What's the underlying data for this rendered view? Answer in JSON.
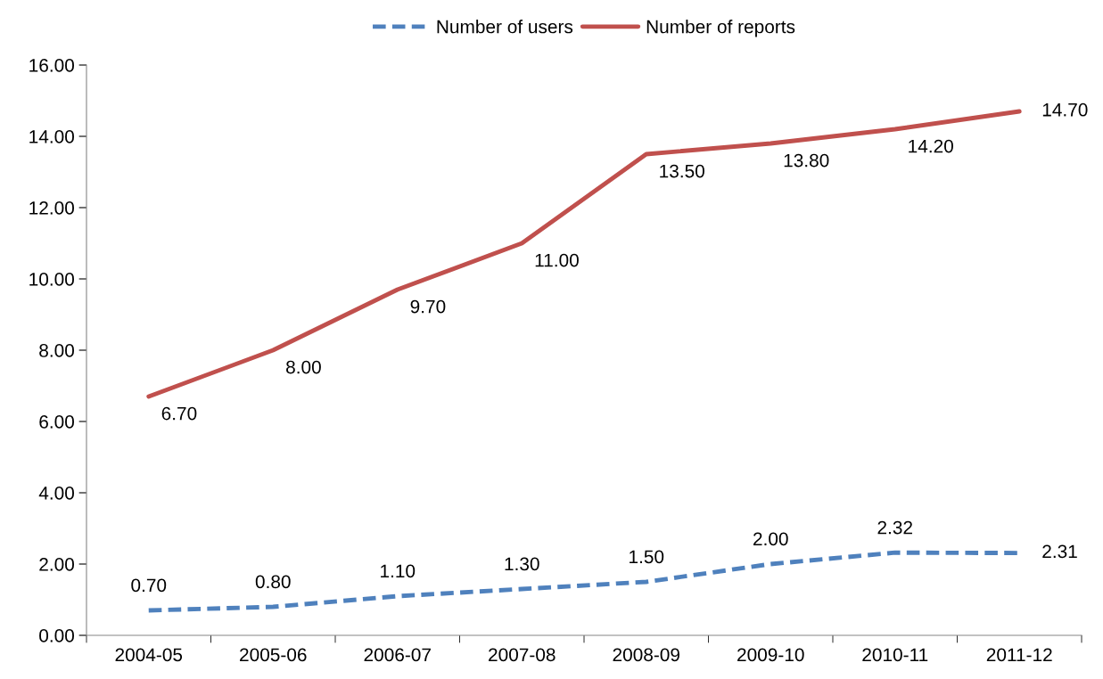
{
  "chart_data": {
    "type": "line",
    "categories": [
      "2004-05",
      "2005-06",
      "2006-07",
      "2007-08",
      "2008-09",
      "2009-10",
      "2010-11",
      "2011-12"
    ],
    "series": [
      {
        "name": "Number of users",
        "color": "#4f81bd",
        "line_style": "dashed",
        "values": [
          0.7,
          0.8,
          1.1,
          1.3,
          1.5,
          2.0,
          2.32,
          2.31
        ],
        "value_labels": [
          "0.70",
          "0.80",
          "1.10",
          "1.30",
          "1.50",
          "2.00",
          "2.32",
          "2.31"
        ]
      },
      {
        "name": "Number of reports",
        "color": "#c0504d",
        "line_style": "solid",
        "values": [
          6.7,
          8.0,
          9.7,
          11.0,
          13.5,
          13.8,
          14.2,
          14.7
        ],
        "value_labels": [
          "6.70",
          "8.00",
          "9.70",
          "11.00",
          "13.50",
          "13.80",
          "14.20",
          "14.70"
        ]
      }
    ],
    "ylim": [
      0,
      16
    ],
    "yticks": [
      {
        "value": 0,
        "label": "0.00"
      },
      {
        "value": 2,
        "label": "2.00"
      },
      {
        "value": 4,
        "label": "4.00"
      },
      {
        "value": 6,
        "label": "6.00"
      },
      {
        "value": 8,
        "label": "8.00"
      },
      {
        "value": 10,
        "label": "10.00"
      },
      {
        "value": 12,
        "label": "12.00"
      },
      {
        "value": 14,
        "label": "14.00"
      },
      {
        "value": 16,
        "label": "16.00"
      }
    ],
    "grid": false,
    "legend": "top",
    "marker": "none"
  }
}
